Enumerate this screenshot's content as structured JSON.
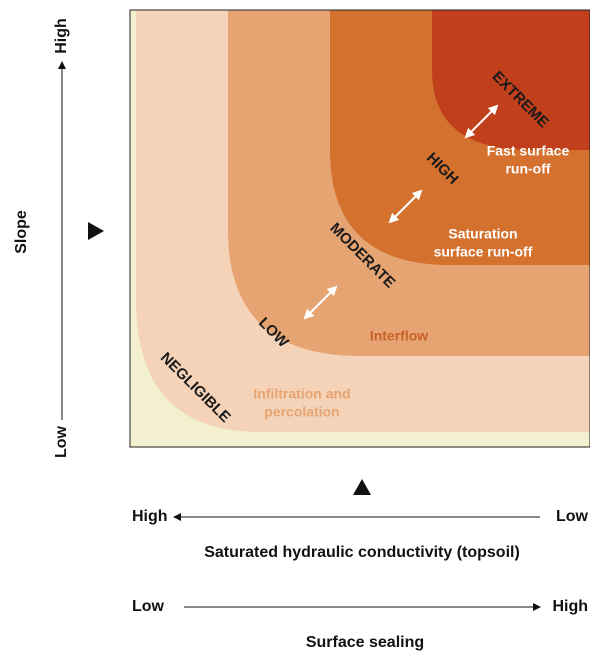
{
  "slope_axis": {
    "title": "Slope",
    "low": "Low",
    "high": "High"
  },
  "conductivity_axis": {
    "left": "High",
    "right": "Low",
    "title": "Saturated hydraulic conductivity (topsoil)"
  },
  "sealing_axis": {
    "left": "Low",
    "right": "High",
    "title": "Surface sealing"
  },
  "zones": [
    "NEGLIGIBLE",
    "LOW",
    "MODERATE",
    "HIGH",
    "EXTREME"
  ],
  "processes": [
    {
      "lines": [
        "Infiltration and",
        "percolation"
      ]
    },
    {
      "lines": [
        "Interflow"
      ]
    },
    {
      "lines": [
        "Saturation",
        "surface  run-off"
      ]
    },
    {
      "lines": [
        "Fast surface",
        "run-off"
      ]
    }
  ]
}
